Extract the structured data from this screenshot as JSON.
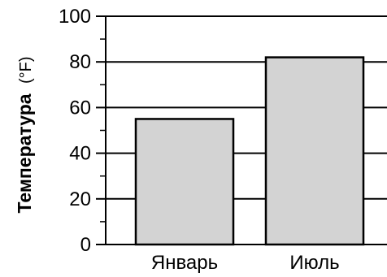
{
  "chart_data": {
    "type": "bar",
    "categories": [
      "Январь",
      "Июль"
    ],
    "values": [
      55,
      82
    ],
    "ylabel": "Температура",
    "ylabel_unit": "(°F)",
    "xlabel": "",
    "title": "",
    "ylim": [
      0,
      100
    ],
    "yticks": [
      0,
      20,
      40,
      60,
      80,
      100
    ],
    "yticks_minor": [
      10,
      30,
      50,
      70,
      90
    ],
    "grid": "horizontal at major ticks",
    "bar_color": "#d3d3d3",
    "bar_edge_color": "#000000",
    "legend": "none"
  }
}
